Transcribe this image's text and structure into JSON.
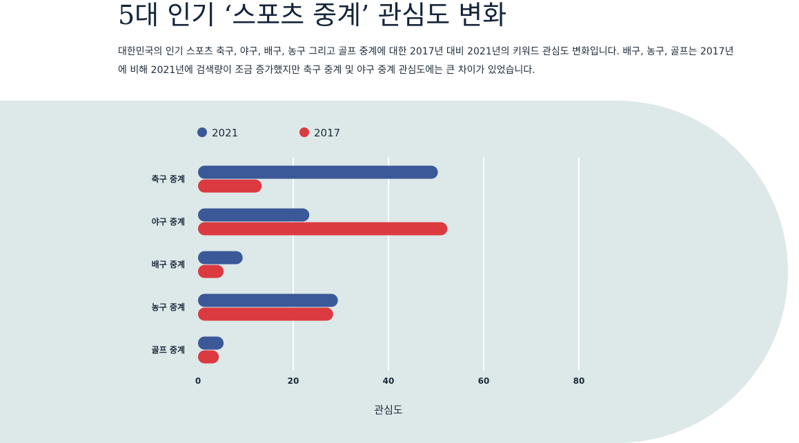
{
  "header": {
    "title": "5대 인기 ‘스포츠 중계’ 관심도 변화",
    "description": "대한민국의 인기 스포츠 축구, 야구, 배구, 농구 그리고 골프 중계에 대한 2017년 대비 2021년의 키워드 관심도 변화입니다. 배구, 농구, 골프는 2017년에 비해 2021년에 검색량이 조금 증가했지만 축구 중계 및 야구 중계 관심도에는 큰 차이가 있었습니다."
  },
  "colors": {
    "series_2021": "#3b5998",
    "series_2017": "#dc3a41",
    "panel": "#dde8e8",
    "gridline": "#ffffff"
  },
  "chart_data": {
    "type": "bar",
    "orientation": "horizontal",
    "title": "",
    "xlabel": "관심도",
    "ylabel": "",
    "categories": [
      "축구 중계",
      "야구 중계",
      "배구 중계",
      "농구 중계",
      "골프 중계"
    ],
    "series": [
      {
        "name": "2021",
        "values": [
          49,
          22,
          8,
          28,
          4
        ]
      },
      {
        "name": "2017",
        "values": [
          12,
          51,
          4,
          27,
          3
        ]
      }
    ],
    "xlim": [
      0,
      80
    ],
    "xticks": [
      "0",
      "20",
      "40",
      "60",
      "80"
    ],
    "grid": true,
    "legend": "top-left"
  }
}
